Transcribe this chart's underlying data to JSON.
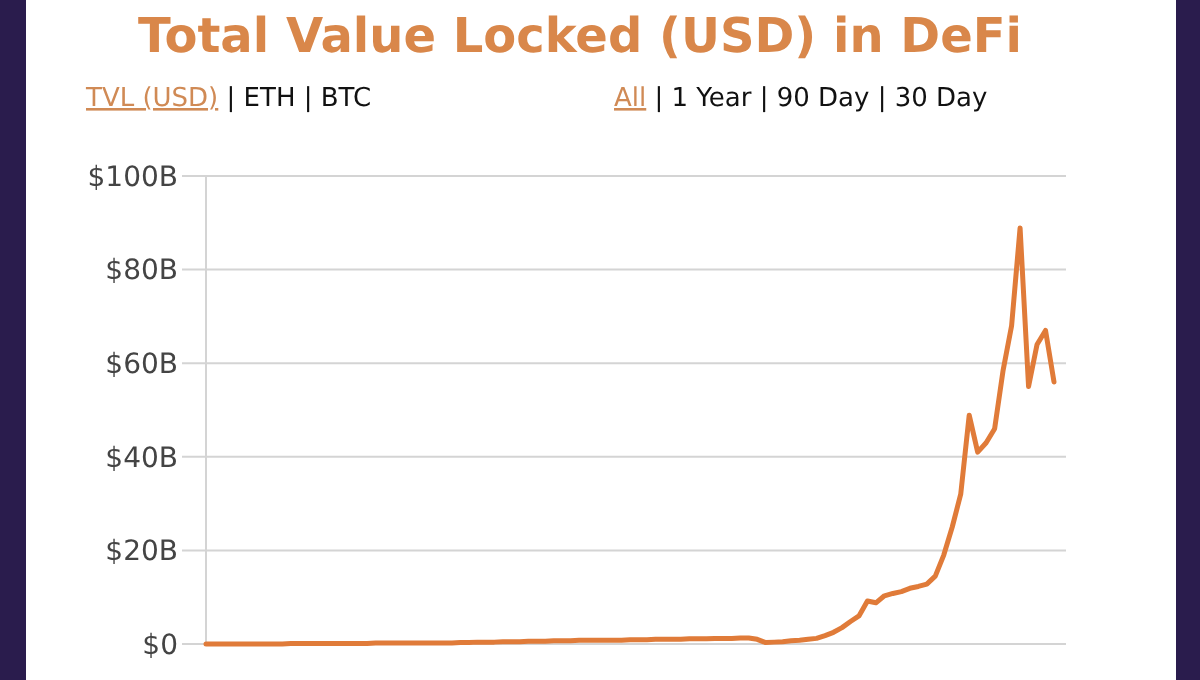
{
  "chart_data": {
    "type": "line",
    "title": "Total Value Locked (USD) in DeFi",
    "annotations": [
      "TVL (USD) | ETH | BTC",
      "All | 1 Year | 90 Day | 30 Day"
    ],
    "categories": [
      null,
      null,
      null,
      null,
      null,
      null,
      null,
      null,
      null,
      null,
      null,
      null,
      null,
      null,
      null,
      null,
      null,
      null,
      null,
      null,
      null,
      null,
      null,
      null,
      null,
      null,
      null,
      null,
      null,
      null,
      null,
      null,
      null,
      null,
      null,
      null,
      null,
      null,
      null,
      null,
      null,
      null,
      null,
      null,
      null,
      null,
      null,
      null,
      null,
      null,
      null,
      null,
      null,
      null,
      null,
      null,
      null,
      null,
      null,
      null,
      null,
      null,
      null,
      null,
      null,
      null,
      null,
      null,
      null,
      null,
      null,
      null,
      null,
      null,
      null,
      null,
      null,
      null,
      null,
      null,
      null,
      null,
      null,
      null,
      null,
      null,
      null,
      null,
      null,
      null,
      null,
      null,
      null,
      null,
      null,
      null,
      null,
      null,
      null,
      null,
      null
    ],
    "series": [
      {
        "color": "#e07b39",
        "values": [
          0,
          0,
          0,
          0,
          0,
          0,
          0,
          0,
          0,
          0,
          0.1,
          0.1,
          0.1,
          0.1,
          0.1,
          0.1,
          0.1,
          0.1,
          0.1,
          0.1,
          0.2,
          0.2,
          0.2,
          0.2,
          0.2,
          0.2,
          0.2,
          0.2,
          0.2,
          0.2,
          0.3,
          0.3,
          0.4,
          0.4,
          0.4,
          0.5,
          0.5,
          0.5,
          0.6,
          0.6,
          0.6,
          0.7,
          0.7,
          0.7,
          0.8,
          0.8,
          0.8,
          0.8,
          0.8,
          0.8,
          0.9,
          0.9,
          0.9,
          1,
          1,
          1,
          1,
          1.1,
          1.1,
          1.1,
          1.2,
          1.2,
          1.2,
          1.3,
          1.3,
          1.0,
          0.3,
          0.4,
          0.5,
          0.7,
          0.8,
          1.0,
          1.2,
          1.8,
          2.5,
          3.5,
          4.8,
          6,
          9.2,
          8.8,
          10.3,
          10.8,
          11.2,
          11.9,
          12.3,
          12.8,
          14.5,
          19,
          25,
          32,
          48.9,
          41,
          43,
          46,
          58.5,
          68,
          88.9,
          55,
          64,
          67,
          56
        ]
      }
    ],
    "ylim": [
      0,
      100
    ],
    "yticks": [
      {
        "value": 0,
        "label": "$0"
      },
      {
        "value": 20,
        "label": "$20B"
      },
      {
        "value": 40,
        "label": "$40B"
      },
      {
        "value": 60,
        "label": "$60B"
      },
      {
        "value": 80,
        "label": "$80B"
      },
      {
        "value": 100,
        "label": "$100B"
      }
    ],
    "grid": "y"
  }
}
